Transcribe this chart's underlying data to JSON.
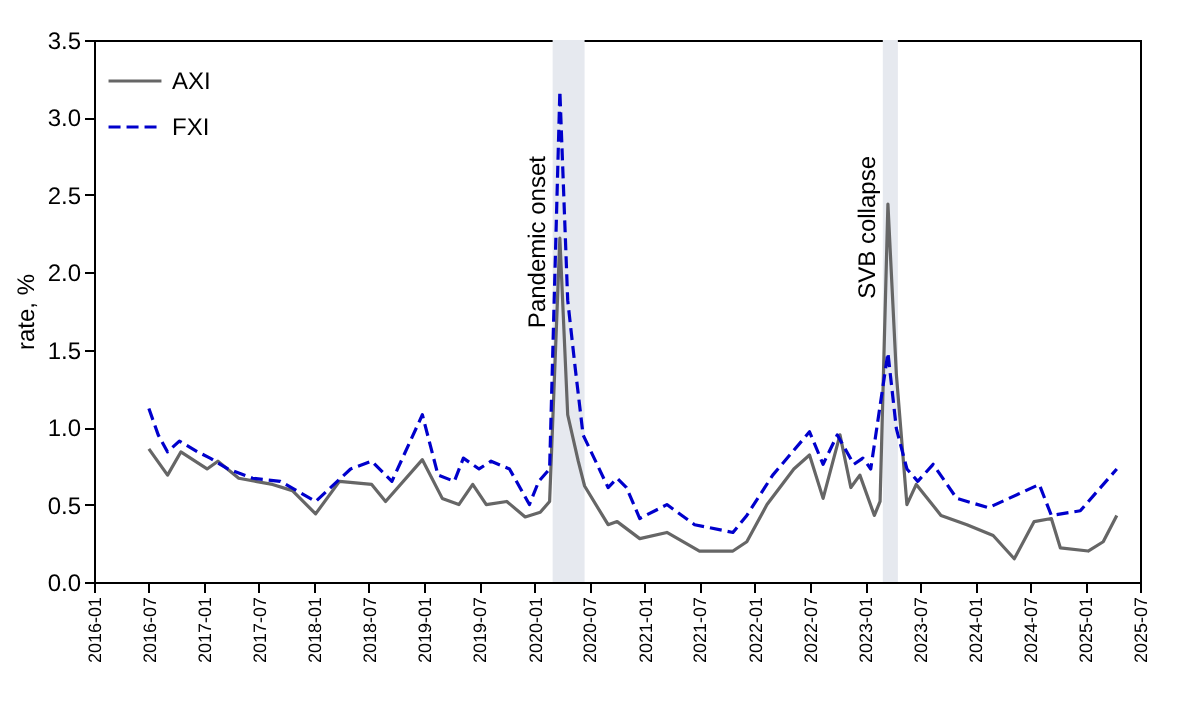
{
  "chart_data": {
    "type": "line",
    "ylabel": "rate, %",
    "xlim": [
      "2016-01",
      "2025-07"
    ],
    "xticks": [
      "2016-01",
      "2016-07",
      "2017-01",
      "2017-07",
      "2018-01",
      "2018-07",
      "2019-01",
      "2019-07",
      "2020-01",
      "2020-07",
      "2021-01",
      "2021-07",
      "2022-01",
      "2022-07",
      "2023-01",
      "2023-07",
      "2024-01",
      "2024-07",
      "2025-01",
      "2025-07"
    ],
    "ylim": [
      0,
      3.5
    ],
    "yticks": [
      {
        "value": 0,
        "label": "0.0"
      },
      {
        "value": 0.5,
        "label": "0.5"
      },
      {
        "value": 1,
        "label": "1.0"
      },
      {
        "value": 1.5,
        "label": "1.5"
      },
      {
        "value": 2,
        "label": "2.0"
      },
      {
        "value": 2.5,
        "label": "2.5"
      },
      {
        "value": 3,
        "label": "3.0"
      },
      {
        "value": 3.5,
        "label": "3.5"
      }
    ],
    "grid": false,
    "legend": "top left",
    "bands": [
      {
        "axis": "x",
        "from": "2020-03-01",
        "to": "2020-06-15",
        "label": "Pandemic onset",
        "color": "#e6e9ef"
      },
      {
        "axis": "x",
        "from": "2023-03-01",
        "to": "2023-04-20",
        "label": "SVB collapse",
        "color": "#e6e9ef"
      }
    ],
    "series": [
      {
        "name": "AXI",
        "color": "#666666",
        "line_style": "solid",
        "x": [
          "2016-07-01",
          "2016-09-01",
          "2016-10-15",
          "2017-01-10",
          "2017-02-15",
          "2017-04-25",
          "2017-08-15",
          "2017-10-20",
          "2018-01-05",
          "2018-03-25",
          "2018-07-10",
          "2018-08-25",
          "2018-12-25",
          "2019-03-01",
          "2019-04-25",
          "2019-06-10",
          "2019-07-25",
          "2019-10-01",
          "2019-12-01",
          "2020-01-20",
          "2020-02-20",
          "2020-03-25",
          "2020-04-20",
          "2020-05-25",
          "2020-06-15",
          "2020-09-01",
          "2020-10-01",
          "2020-12-15",
          "2021-03-15",
          "2021-07-01",
          "2021-10-20",
          "2021-12-05",
          "2022-02-10",
          "2022-05-10",
          "2022-07-01",
          "2022-08-15",
          "2022-10-10",
          "2022-11-15",
          "2022-12-15",
          "2023-02-01",
          "2023-02-20",
          "2023-03-18",
          "2023-04-15",
          "2023-05-20",
          "2023-06-20",
          "2023-09-10",
          "2023-12-05",
          "2024-03-01",
          "2024-05-10",
          "2024-07-15",
          "2024-09-10",
          "2024-10-10",
          "2025-01-10",
          "2025-03-01",
          "2025-04-15"
        ],
        "values": [
          0.86,
          0.69,
          0.84,
          0.73,
          0.78,
          0.67,
          0.63,
          0.59,
          0.44,
          0.65,
          0.63,
          0.52,
          0.79,
          0.54,
          0.5,
          0.63,
          0.5,
          0.52,
          0.42,
          0.45,
          0.52,
          2.22,
          1.08,
          0.78,
          0.62,
          0.37,
          0.39,
          0.28,
          0.32,
          0.2,
          0.2,
          0.26,
          0.5,
          0.73,
          0.82,
          0.54,
          0.95,
          0.61,
          0.69,
          0.43,
          0.52,
          2.44,
          1.34,
          0.5,
          0.63,
          0.43,
          0.37,
          0.3,
          0.15,
          0.39,
          0.41,
          0.22,
          0.2,
          0.26,
          0.43
        ]
      },
      {
        "name": "FXI",
        "color": "#0000cc",
        "line_style": "dashed",
        "x": [
          "2016-07-01",
          "2016-08-01",
          "2016-09-01",
          "2016-10-10",
          "2016-12-10",
          "2017-01-20",
          "2017-03-20",
          "2017-06-10",
          "2017-09-10",
          "2018-01-05",
          "2018-05-01",
          "2018-07-10",
          "2018-09-15",
          "2018-12-25",
          "2019-02-15",
          "2019-04-10",
          "2019-05-10",
          "2019-07-01",
          "2019-08-10",
          "2019-10-10",
          "2019-12-15",
          "2020-01-15",
          "2020-02-20",
          "2020-03-25",
          "2020-04-20",
          "2020-05-15",
          "2020-06-10",
          "2020-09-01",
          "2020-10-01",
          "2020-11-01",
          "2020-12-15",
          "2021-03-15",
          "2021-06-15",
          "2021-10-20",
          "2021-12-05",
          "2022-03-01",
          "2022-07-01",
          "2022-08-15",
          "2022-10-01",
          "2022-11-25",
          "2022-12-25",
          "2023-01-20",
          "2023-03-18",
          "2023-04-15",
          "2023-05-20",
          "2023-06-25",
          "2023-08-15",
          "2023-11-01",
          "2024-02-15",
          "2024-08-01",
          "2024-09-10",
          "2024-12-15",
          "2025-04-15"
        ],
        "values": [
          1.12,
          0.95,
          0.84,
          0.91,
          0.84,
          0.8,
          0.73,
          0.67,
          0.65,
          0.52,
          0.73,
          0.78,
          0.65,
          1.08,
          0.69,
          0.65,
          0.8,
          0.73,
          0.78,
          0.73,
          0.5,
          0.65,
          0.73,
          3.17,
          1.82,
          1.38,
          0.95,
          0.61,
          0.67,
          0.61,
          0.41,
          0.5,
          0.37,
          0.32,
          0.43,
          0.69,
          0.97,
          0.76,
          0.95,
          0.76,
          0.8,
          0.73,
          1.48,
          0.99,
          0.73,
          0.65,
          0.76,
          0.54,
          0.48,
          0.63,
          0.43,
          0.46,
          0.73
        ]
      }
    ]
  }
}
